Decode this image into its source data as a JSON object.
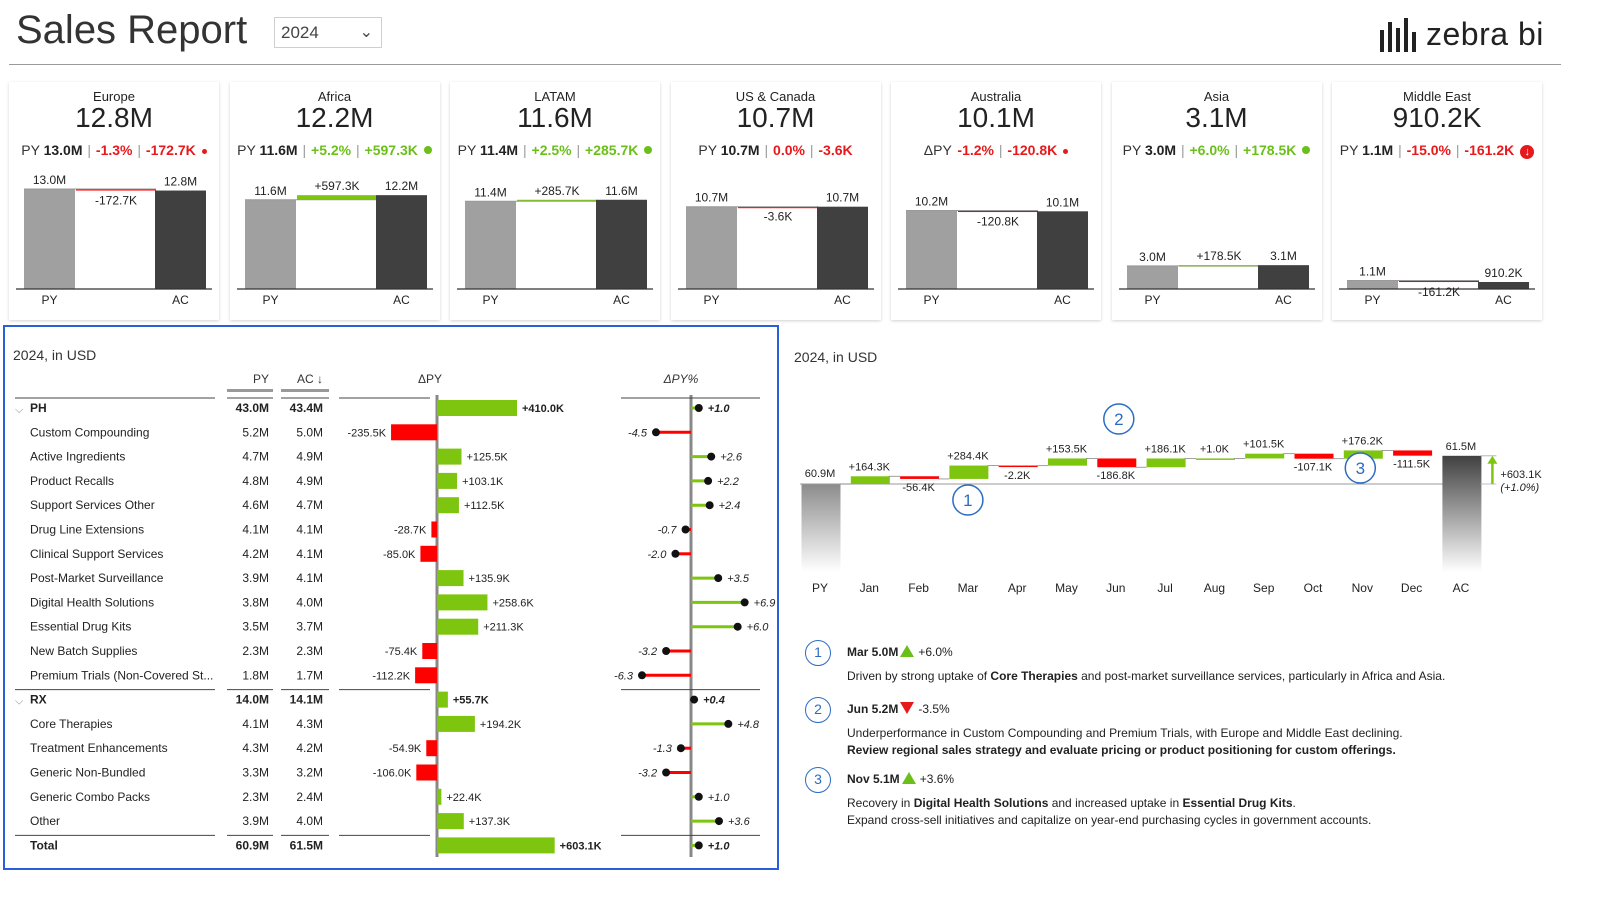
{
  "header": {
    "title": "Sales Report",
    "year": "2024",
    "logo_text": "zebra bi"
  },
  "cards": [
    {
      "name": "Europe",
      "value": "12.8M",
      "lbl": "PY",
      "py": "13.0M",
      "d1": "-1.3%",
      "d2": "-172.7K",
      "dir": "neg",
      "mark": "dot",
      "chart": {
        "py": 13.0,
        "ac": 12.8,
        "delta": -0.1727,
        "py_label": "13.0M",
        "ac_label": "12.8M",
        "delta_label": "-172.7K",
        "x_py": "PY",
        "x_ac": "AC"
      }
    },
    {
      "name": "Africa",
      "value": "12.2M",
      "lbl": "PY",
      "py": "11.6M",
      "d1": "+5.2%",
      "d2": "+597.3K",
      "dir": "pos",
      "mark": "dotplus",
      "chart": {
        "py": 11.6,
        "ac": 12.2,
        "delta": 0.5973,
        "py_label": "11.6M",
        "ac_label": "12.2M",
        "delta_label": "+597.3K",
        "x_py": "PY",
        "x_ac": "AC"
      }
    },
    {
      "name": "LATAM",
      "value": "11.6M",
      "lbl": "PY",
      "py": "11.4M",
      "d1": "+2.5%",
      "d2": "+285.7K",
      "dir": "pos",
      "mark": "dotplus",
      "chart": {
        "py": 11.4,
        "ac": 11.6,
        "delta": 0.2857,
        "py_label": "11.4M",
        "ac_label": "11.6M",
        "delta_label": "+285.7K",
        "x_py": "PY",
        "x_ac": "AC"
      }
    },
    {
      "name": "US & Canada",
      "value": "10.7M",
      "lbl": "PY",
      "py": "10.7M",
      "d1": "0.0%",
      "d2": "-3.6K",
      "dir": "neg",
      "mark": "none",
      "chart": {
        "py": 10.7,
        "ac": 10.7,
        "delta": -0.0036,
        "py_label": "10.7M",
        "ac_label": "10.7M",
        "delta_label": "-3.6K",
        "x_py": "PY",
        "x_ac": "AC"
      }
    },
    {
      "name": "Australia",
      "value": "10.1M",
      "lbl": "ΔPY",
      "py": "",
      "d1": "-1.2%",
      "d2": "-120.8K",
      "dir": "neg",
      "mark": "dot",
      "chart": {
        "py": 10.2,
        "ac": 10.1,
        "delta": -0.1208,
        "py_label": "10.2M",
        "ac_label": "10.1M",
        "delta_label": "-120.8K",
        "x_py": "PY",
        "x_ac": "AC"
      }
    },
    {
      "name": "Asia",
      "value": "3.1M",
      "lbl": "PY",
      "py": "3.0M",
      "d1": "+6.0%",
      "d2": "+178.5K",
      "dir": "pos",
      "mark": "dotplus",
      "chart": {
        "py": 3.0,
        "ac": 3.1,
        "delta": 0.1785,
        "py_label": "3.0M",
        "ac_label": "3.1M",
        "delta_label": "+178.5K",
        "x_py": "PY",
        "x_ac": "AC"
      }
    },
    {
      "name": "Middle East",
      "value": "910.2K",
      "lbl": "PY",
      "py": "1.1M",
      "d1": "-15.0%",
      "d2": "-161.2K",
      "dir": "neg",
      "mark": "bigdown",
      "chart": {
        "py": 1.1,
        "ac": 0.91,
        "delta": -0.1612,
        "py_label": "1.1M",
        "ac_label": "910.2K",
        "delta_label": "-161.2K",
        "x_py": "PY",
        "x_ac": "AC"
      }
    }
  ],
  "table": {
    "title": "2024, in USD",
    "headers": {
      "py": "PY",
      "ac": "AC ↓",
      "dpy": "ΔPY",
      "dpyp": "ΔPY%"
    },
    "rows": [
      {
        "name": "PH",
        "group": true,
        "py": "43.0M",
        "ac": "43.4M",
        "d": 410.0,
        "dl": "+410.0K",
        "p": 1.0,
        "pl": "+1.0"
      },
      {
        "name": "Custom Compounding",
        "py": "5.2M",
        "ac": "5.0M",
        "d": -235.5,
        "dl": "-235.5K",
        "p": -4.5,
        "pl": "-4.5"
      },
      {
        "name": "Active Ingredients",
        "py": "4.7M",
        "ac": "4.9M",
        "d": 125.5,
        "dl": "+125.5K",
        "p": 2.6,
        "pl": "+2.6"
      },
      {
        "name": "Product Recalls",
        "py": "4.8M",
        "ac": "4.9M",
        "d": 103.1,
        "dl": "+103.1K",
        "p": 2.2,
        "pl": "+2.2"
      },
      {
        "name": "Support Services Other",
        "py": "4.6M",
        "ac": "4.7M",
        "d": 112.5,
        "dl": "+112.5K",
        "p": 2.4,
        "pl": "+2.4"
      },
      {
        "name": "Drug Line Extensions",
        "py": "4.1M",
        "ac": "4.1M",
        "d": -28.7,
        "dl": "-28.7K",
        "p": -0.7,
        "pl": "-0.7"
      },
      {
        "name": "Clinical Support Services",
        "py": "4.2M",
        "ac": "4.1M",
        "d": -85.0,
        "dl": "-85.0K",
        "p": -2.0,
        "pl": "-2.0"
      },
      {
        "name": "Post-Market Surveillance",
        "py": "3.9M",
        "ac": "4.1M",
        "d": 135.9,
        "dl": "+135.9K",
        "p": 3.5,
        "pl": "+3.5"
      },
      {
        "name": "Digital Health Solutions",
        "py": "3.8M",
        "ac": "4.0M",
        "d": 258.6,
        "dl": "+258.6K",
        "p": 6.9,
        "pl": "+6.9"
      },
      {
        "name": "Essential Drug Kits",
        "py": "3.5M",
        "ac": "3.7M",
        "d": 211.3,
        "dl": "+211.3K",
        "p": 6.0,
        "pl": "+6.0"
      },
      {
        "name": "New Batch Supplies",
        "py": "2.3M",
        "ac": "2.3M",
        "d": -75.4,
        "dl": "-75.4K",
        "p": -3.2,
        "pl": "-3.2"
      },
      {
        "name": "Premium Trials (Non-Covered St...",
        "py": "1.8M",
        "ac": "1.7M",
        "d": -112.2,
        "dl": "-112.2K",
        "p": -6.3,
        "pl": "-6.3"
      },
      {
        "name": "RX",
        "group": true,
        "py": "14.0M",
        "ac": "14.1M",
        "d": 55.7,
        "dl": "+55.7K",
        "p": 0.4,
        "pl": "+0.4"
      },
      {
        "name": "Core Therapies",
        "py": "4.1M",
        "ac": "4.3M",
        "d": 194.2,
        "dl": "+194.2K",
        "p": 4.8,
        "pl": "+4.8"
      },
      {
        "name": "Treatment Enhancements",
        "py": "4.3M",
        "ac": "4.2M",
        "d": -54.9,
        "dl": "-54.9K",
        "p": -1.3,
        "pl": "-1.3"
      },
      {
        "name": "Generic Non-Bundled",
        "py": "3.3M",
        "ac": "3.2M",
        "d": -106.0,
        "dl": "-106.0K",
        "p": -3.2,
        "pl": "-3.2"
      },
      {
        "name": "Generic Combo Packs",
        "py": "2.3M",
        "ac": "2.4M",
        "d": 22.4,
        "dl": "+22.4K",
        "p": 1.0,
        "pl": "+1.0"
      },
      {
        "name": "Other",
        "py": "3.9M",
        "ac": "4.0M",
        "d": 137.3,
        "dl": "+137.3K",
        "p": 3.6,
        "pl": "+3.6"
      },
      {
        "name": "Total",
        "total": true,
        "py": "60.9M",
        "ac": "61.5M",
        "d": 603.1,
        "dl": "+603.1K",
        "p": 1.0,
        "pl": "+1.0"
      }
    ]
  },
  "chart_data": {
    "type": "bar",
    "title": "2024, in USD",
    "categories": [
      "PY",
      "Jan",
      "Feb",
      "Mar",
      "Apr",
      "May",
      "Jun",
      "Jul",
      "Aug",
      "Sep",
      "Oct",
      "Nov",
      "Dec",
      "AC"
    ],
    "values": [
      60.9,
      0.1643,
      -0.0564,
      0.2844,
      -0.0022,
      0.1535,
      -0.1868,
      0.1861,
      0.001,
      0.1015,
      -0.1071,
      0.1762,
      -0.1115,
      61.5
    ],
    "labels": [
      "60.9M",
      "+164.3K",
      "-56.4K",
      "+284.4K",
      "-2.2K",
      "+153.5K",
      "-186.8K",
      "+186.1K",
      "+1.0K",
      "+101.5K",
      "-107.1K",
      "+176.2K",
      "-111.5K",
      "61.5M"
    ],
    "total_delta": "+603.1K",
    "total_delta_pct": "(+1.0%)",
    "markers": [
      {
        "id": "1",
        "month": "Mar"
      },
      {
        "id": "2",
        "month": "Jun"
      },
      {
        "id": "3",
        "month": "Nov"
      }
    ]
  },
  "notes": [
    {
      "id": "1",
      "month": "Mar",
      "val": "5.0M",
      "arrow": "up",
      "pct": "+6.0%",
      "lines": [
        [
          {
            "t": "Driven by strong uptake of "
          },
          {
            "t": "Core Therapies",
            "b": true
          },
          {
            "t": " and post-market surveillance services, particularly in Africa and Asia."
          }
        ]
      ]
    },
    {
      "id": "2",
      "month": "Jun",
      "val": "5.2M",
      "arrow": "down",
      "pct": "-3.5%",
      "lines": [
        [
          {
            "t": "Underperformance in Custom Compounding and Premium Trials, with Europe and Middle East declining."
          }
        ],
        [
          {
            "t": "Review regional sales strategy and evaluate pricing or product positioning for custom offerings.",
            "b": true
          }
        ]
      ]
    },
    {
      "id": "3",
      "month": "Nov",
      "val": "5.1M",
      "arrow": "up",
      "pct": "+3.6%",
      "lines": [
        [
          {
            "t": "Recovery in "
          },
          {
            "t": "Digital Health Solutions",
            "b": true
          },
          {
            "t": " and increased uptake in "
          },
          {
            "t": "Essential Drug Kits",
            "b": true
          },
          {
            "t": "."
          }
        ],
        [
          {
            "t": "Expand cross-sell initiatives and capitalize on year-end purchasing cycles in government accounts."
          }
        ]
      ]
    }
  ],
  "colors": {
    "green": "#7ec50f",
    "red": "#ff0000",
    "ac": "#404040",
    "py": "#a0a0a0",
    "blue": "#2b6cc4",
    "frame": "#2b5fd9"
  }
}
